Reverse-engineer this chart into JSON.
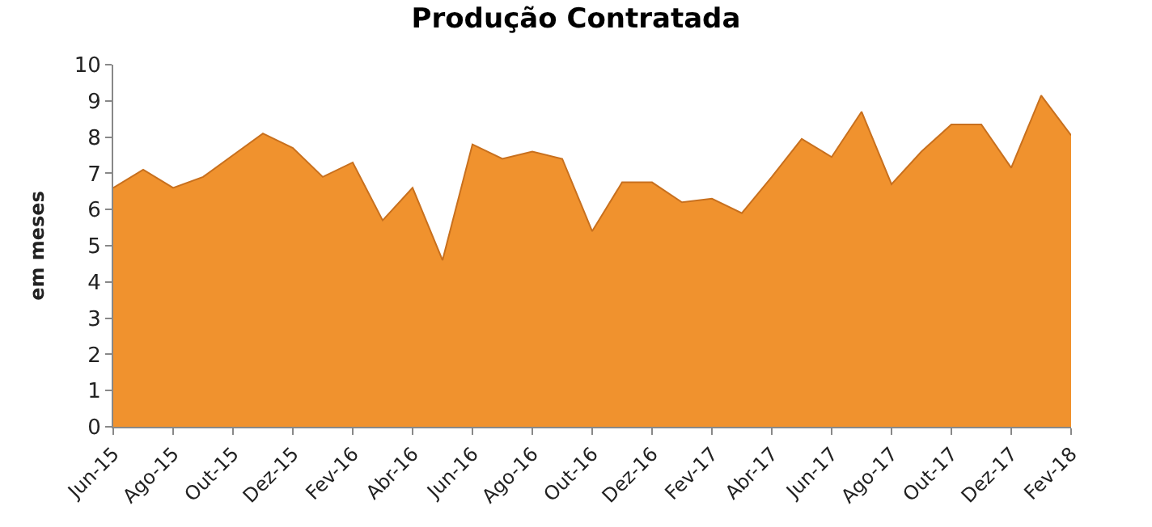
{
  "chart_data": {
    "type": "area",
    "title": "Produção Contratada",
    "ylabel": "em meses",
    "categories": [
      "Jun-15",
      null,
      "Ago-15",
      null,
      "Out-15",
      null,
      "Dez-15",
      null,
      "Fev-16",
      null,
      "Abr-16",
      null,
      "Jun-16",
      null,
      "Ago-16",
      null,
      "Out-16",
      null,
      "Dez-16",
      null,
      "Fev-17",
      null,
      "Abr-17",
      null,
      "Jun-17",
      null,
      "Ago-17",
      null,
      "Out-17",
      null,
      "Dez-17",
      null,
      "Fev-18"
    ],
    "values": [
      6.6,
      7.1,
      6.6,
      6.9,
      7.5,
      8.1,
      7.7,
      6.9,
      7.3,
      5.7,
      6.6,
      4.6,
      7.8,
      7.4,
      7.6,
      7.4,
      5.4,
      6.75,
      6.75,
      6.2,
      6.3,
      5.9,
      6.9,
      7.95,
      7.45,
      8.7,
      6.7,
      7.6,
      8.35,
      8.35,
      7.15,
      9.15,
      8.05
    ],
    "color": "#f0922e",
    "ylim": [
      0,
      10
    ],
    "yticks": [
      0,
      1,
      2,
      3,
      4,
      5,
      6,
      7,
      8,
      9,
      10
    ]
  }
}
